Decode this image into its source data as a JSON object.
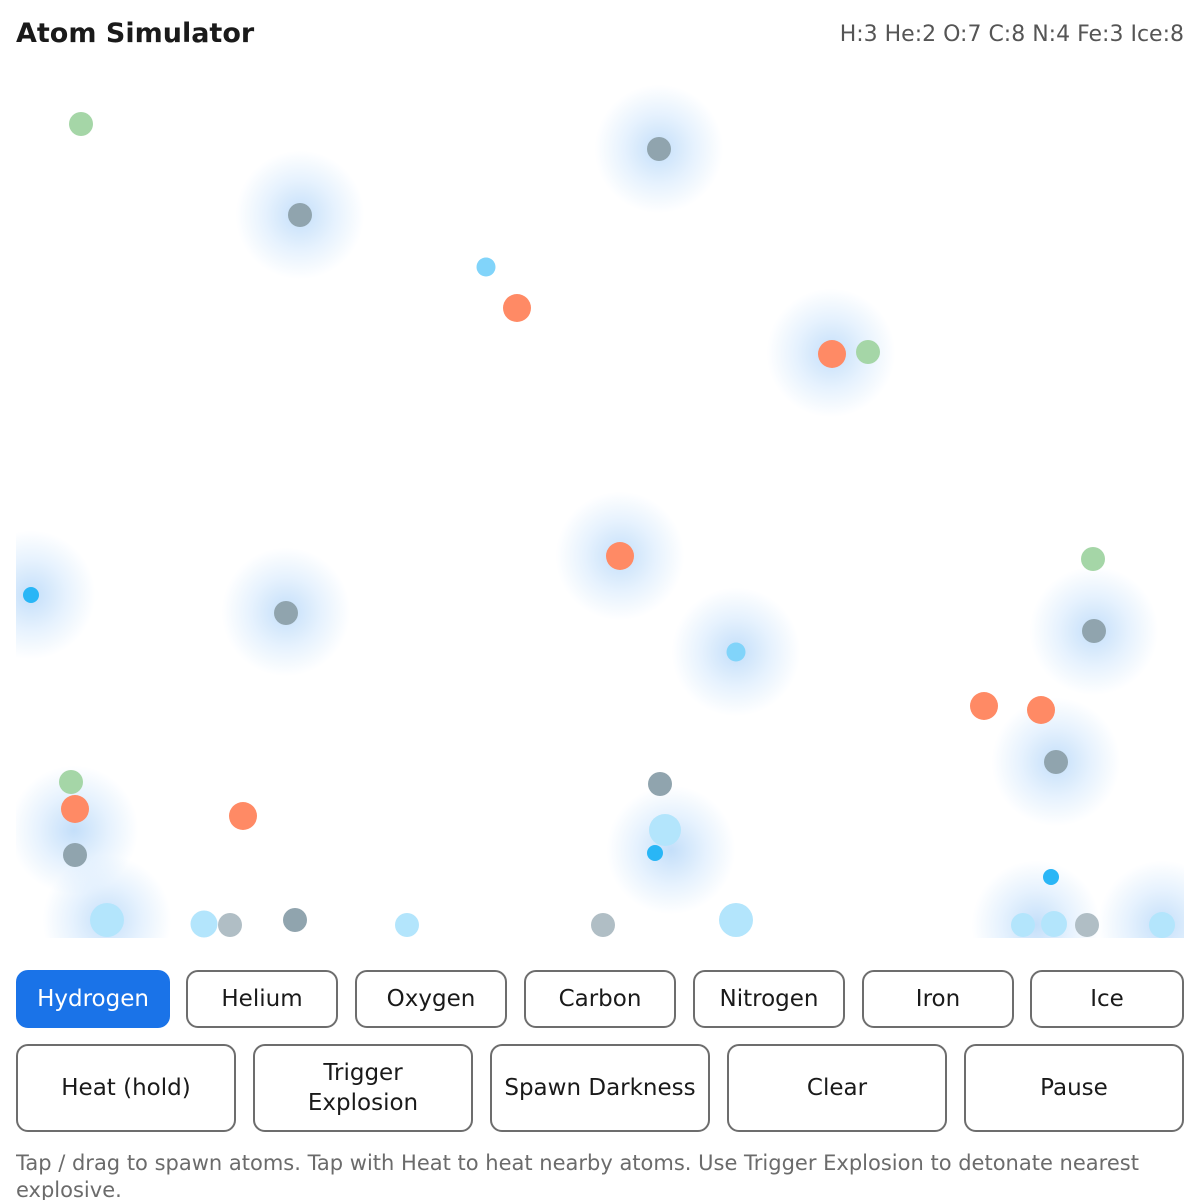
{
  "app": {
    "title": "Atom Simulator",
    "counts": "H:3 He:2 O:7 C:8 N:4 Fe:3 Ice:8"
  },
  "elements": [
    {
      "label": "Hydrogen",
      "selected": true
    },
    {
      "label": "Helium",
      "selected": false
    },
    {
      "label": "Oxygen",
      "selected": false
    },
    {
      "label": "Carbon",
      "selected": false
    },
    {
      "label": "Nitrogen",
      "selected": false
    },
    {
      "label": "Iron",
      "selected": false
    },
    {
      "label": "Ice",
      "selected": false
    }
  ],
  "actions": {
    "heat": "Heat (hold)",
    "trigger_explosion": "Trigger Explosion",
    "spawn_darkness": "Spawn Darkness",
    "clear": "Clear",
    "pause": "Pause"
  },
  "hint": "Tap / drag to spawn atoms. Tap with Heat to heat nearby atoms. Use Trigger Explosion to detonate nearest explosive.",
  "colors": {
    "accent": "#1a73e8",
    "hydrogen": "#4fc3f7",
    "helium": "#a5d6a7",
    "oxygen": "#ff8a65",
    "carbon": "#90a4ae",
    "iron": "#b0bec5",
    "ice": "#b3e5fc",
    "glow": "#cfe3fa"
  }
}
